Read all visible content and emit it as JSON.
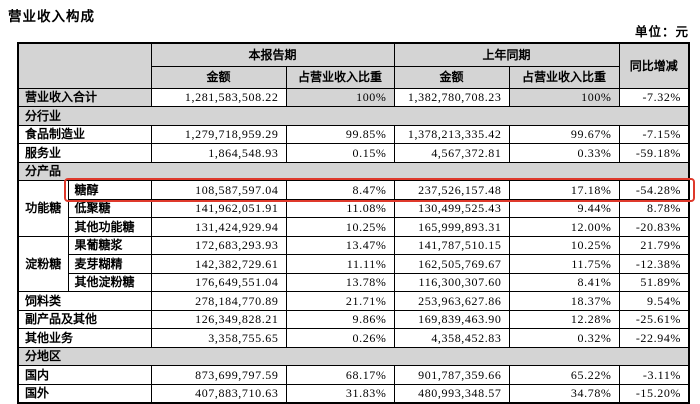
{
  "title": "营业收入构成",
  "unit_label": "单位：元",
  "colors": {
    "header_bg": "#d4d4d4",
    "highlight_border": "#df392b"
  },
  "table": {
    "header": {
      "current_period": "本报告期",
      "prior_period": "上年同期",
      "yoy": "同比增减",
      "amount": "金额",
      "pct": "占营业收入比重"
    },
    "rows": [
      {
        "type": "total",
        "label": "营业收入合计",
        "a1": "1,281,583,508.22",
        "p1": "100%",
        "a2": "1,382,780,708.23",
        "p2": "100%",
        "yoy": "-7.32%"
      },
      {
        "type": "section",
        "label": "分行业"
      },
      {
        "type": "data",
        "label": "食品制造业",
        "a1": "1,279,718,959.29",
        "p1": "99.85%",
        "a2": "1,378,213,335.42",
        "p2": "99.67%",
        "yoy": "-7.15%"
      },
      {
        "type": "data",
        "label": "服务业",
        "a1": "1,864,548.93",
        "p1": "0.15%",
        "a2": "4,567,372.81",
        "p2": "0.33%",
        "yoy": "-59.18%"
      },
      {
        "type": "section",
        "label": "分产品"
      },
      {
        "type": "group-data",
        "group": "功能糖",
        "group_span": 3,
        "label": "糖醇",
        "a1": "108,587,597.04",
        "p1": "8.47%",
        "a2": "237,526,157.48",
        "p2": "17.18%",
        "yoy": "-54.28%",
        "highlight": true
      },
      {
        "type": "group-data",
        "label": "低聚糖",
        "a1": "141,962,051.91",
        "p1": "11.08%",
        "a2": "130,499,525.43",
        "p2": "9.44%",
        "yoy": "8.78%"
      },
      {
        "type": "group-data",
        "label": "其他功能糖",
        "a1": "131,424,929.94",
        "p1": "10.25%",
        "a2": "165,999,893.31",
        "p2": "12.00%",
        "yoy": "-20.83%"
      },
      {
        "type": "group-data",
        "group": "淀粉糖",
        "group_span": 3,
        "label": "果葡糖浆",
        "a1": "172,683,293.93",
        "p1": "13.47%",
        "a2": "141,787,510.15",
        "p2": "10.25%",
        "yoy": "21.79%"
      },
      {
        "type": "group-data",
        "label": "麦芽糊精",
        "a1": "142,382,729.61",
        "p1": "11.11%",
        "a2": "162,505,769.67",
        "p2": "11.75%",
        "yoy": "-12.38%"
      },
      {
        "type": "group-data",
        "label": "其他淀粉糖",
        "a1": "176,649,551.04",
        "p1": "13.78%",
        "a2": "116,300,307.60",
        "p2": "8.41%",
        "yoy": "51.89%"
      },
      {
        "type": "data",
        "label": "饲料类",
        "a1": "278,184,770.89",
        "p1": "21.71%",
        "a2": "253,963,627.86",
        "p2": "18.37%",
        "yoy": "9.54%"
      },
      {
        "type": "data",
        "label": "副产品及其他",
        "a1": "126,349,828.21",
        "p1": "9.86%",
        "a2": "169,839,463.90",
        "p2": "12.28%",
        "yoy": "-25.61%"
      },
      {
        "type": "data",
        "label": "其他业务",
        "a1": "3,358,755.65",
        "p1": "0.26%",
        "a2": "4,358,452.83",
        "p2": "0.32%",
        "yoy": "-22.94%"
      },
      {
        "type": "section",
        "label": "分地区"
      },
      {
        "type": "data",
        "label": "国内",
        "a1": "873,699,797.59",
        "p1": "68.17%",
        "a2": "901,787,359.66",
        "p2": "65.22%",
        "yoy": "-3.11%"
      },
      {
        "type": "data",
        "label": "国外",
        "a1": "407,883,710.63",
        "p1": "31.83%",
        "a2": "480,993,348.57",
        "p2": "34.78%",
        "yoy": "-15.20%"
      }
    ]
  }
}
